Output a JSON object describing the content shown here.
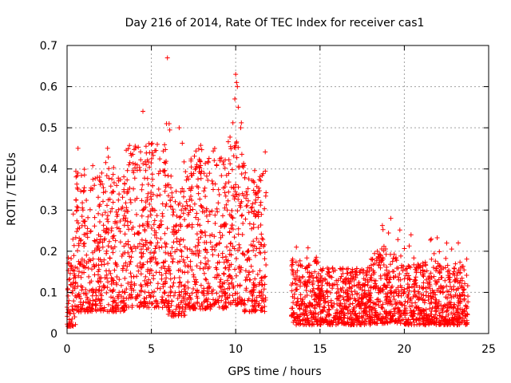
{
  "chart_data": {
    "type": "scatter",
    "title": "Day 216 of 2014, Rate Of TEC Index for receiver cas1",
    "xlabel": "GPS time / hours",
    "ylabel": "ROTI / TECUs",
    "xlim": [
      0,
      25
    ],
    "ylim": [
      0,
      0.7
    ],
    "xticks": [
      "0",
      "5",
      "10",
      "15",
      "20",
      "25"
    ],
    "xtick_values": [
      0,
      5,
      10,
      15,
      20,
      25
    ],
    "yticks": [
      "0",
      "0.1",
      "0.2",
      "0.3",
      "0.4",
      "0.5",
      "0.6",
      "0.7"
    ],
    "ytick_values": [
      0,
      0.1,
      0.2,
      0.3,
      0.4,
      0.5,
      0.6,
      0.7
    ],
    "grid": true,
    "marker": "+",
    "color": "#ff0000",
    "series": [
      {
        "name": "cas1",
        "segments": [
          {
            "x_start": 0.0,
            "x_end": 0.5,
            "base": 0.05,
            "spread": 0.12,
            "max": 0.3
          },
          {
            "x_start": 0.5,
            "x_end": 1.5,
            "base": 0.15,
            "spread": 0.2,
            "max": 0.45
          },
          {
            "x_start": 1.5,
            "x_end": 3.5,
            "base": 0.15,
            "spread": 0.2,
            "max": 0.45
          },
          {
            "x_start": 3.5,
            "x_end": 6.0,
            "base": 0.18,
            "spread": 0.22,
            "max": 0.52
          },
          {
            "x_start": 6.0,
            "x_end": 7.0,
            "base": 0.12,
            "spread": 0.2,
            "max": 0.5
          },
          {
            "x_start": 7.0,
            "x_end": 9.5,
            "base": 0.17,
            "spread": 0.2,
            "max": 0.47
          },
          {
            "x_start": 9.5,
            "x_end": 10.5,
            "base": 0.2,
            "spread": 0.25,
            "max": 0.62
          },
          {
            "x_start": 10.5,
            "x_end": 11.8,
            "base": 0.15,
            "spread": 0.2,
            "max": 0.45
          },
          {
            "x_start": 13.3,
            "x_end": 15.0,
            "base": 0.06,
            "spread": 0.1,
            "max": 0.21
          },
          {
            "x_start": 15.0,
            "x_end": 18.0,
            "base": 0.06,
            "spread": 0.08,
            "max": 0.16
          },
          {
            "x_start": 18.0,
            "x_end": 20.0,
            "base": 0.07,
            "spread": 0.1,
            "max": 0.27
          },
          {
            "x_start": 20.0,
            "x_end": 23.8,
            "base": 0.06,
            "spread": 0.09,
            "max": 0.24
          }
        ],
        "outliers": [
          {
            "x": 5.95,
            "y": 0.67
          },
          {
            "x": 4.5,
            "y": 0.54
          },
          {
            "x": 10.0,
            "y": 0.63
          },
          {
            "x": 10.05,
            "y": 0.61
          },
          {
            "x": 10.1,
            "y": 0.6
          },
          {
            "x": 9.95,
            "y": 0.57
          },
          {
            "x": 10.15,
            "y": 0.55
          },
          {
            "x": 5.9,
            "y": 0.51
          },
          {
            "x": 6.05,
            "y": 0.51
          },
          {
            "x": 6.65,
            "y": 0.5
          },
          {
            "x": 10.3,
            "y": 0.5
          },
          {
            "x": 0.65,
            "y": 0.45
          },
          {
            "x": 2.4,
            "y": 0.45
          },
          {
            "x": 19.2,
            "y": 0.28
          },
          {
            "x": 20.4,
            "y": 0.24
          },
          {
            "x": 23.2,
            "y": 0.22
          },
          {
            "x": 13.6,
            "y": 0.21
          },
          {
            "x": 18.4,
            "y": 0.2
          }
        ]
      }
    ]
  }
}
